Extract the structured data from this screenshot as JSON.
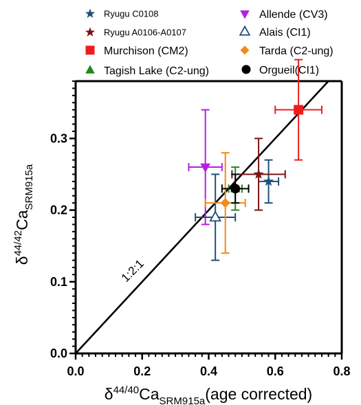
{
  "chart_data": {
    "type": "scatter",
    "xlabel": {
      "main": "δ",
      "sup": "44/40",
      "mid": "Ca",
      "sub": "SRM915a",
      "tail": "(age corrected)"
    },
    "ylabel": {
      "main": "δ",
      "sup": "44/42",
      "mid": "Ca",
      "sub": "SRM915a"
    },
    "xlim": [
      0.0,
      0.8
    ],
    "ylim": [
      0.0,
      0.38
    ],
    "x_ticks": [
      "0.0",
      "0.2",
      "0.4",
      "0.6",
      "0.8"
    ],
    "y_ticks": [
      "0.0",
      "0.1",
      "0.2",
      "0.3"
    ],
    "reference_line": {
      "label": "1:2:1",
      "slope": 0.5
    },
    "series": [
      {
        "name": "Ryugu C0108",
        "marker": "star",
        "color": "#1f4e79",
        "x": 0.58,
        "y": 0.24,
        "xerr": 0.03,
        "yerr": 0.03
      },
      {
        "name": "Ryugu A0106-A0107",
        "marker": "star",
        "color": "#7b1416",
        "x": 0.55,
        "y": 0.25,
        "xerr": 0.08,
        "yerr": 0.05
      },
      {
        "name": "Murchison (CM2)",
        "marker": "square",
        "color": "#ee1c1c",
        "x": 0.67,
        "y": 0.34,
        "xerr": 0.07,
        "yerr": 0.07
      },
      {
        "name": "Tagish Lake (C2-ung)",
        "marker": "triangle-up",
        "color": "#1e8a1e",
        "x": 0.48,
        "y": 0.23,
        "xerr": 0.02,
        "yerr": 0.03
      },
      {
        "name": "Allende (CV3)",
        "marker": "triangle-down",
        "color": "#b31fe0",
        "x": 0.39,
        "y": 0.26,
        "xerr": 0.05,
        "yerr": 0.08
      },
      {
        "name": "Alais (CI1)",
        "marker": "triangle-up-open",
        "color": "#1f4e79",
        "x": 0.42,
        "y": 0.19,
        "xerr": 0.06,
        "yerr": 0.06
      },
      {
        "name": "Tarda (C2-ung)",
        "marker": "diamond",
        "color": "#f08a1a",
        "x": 0.45,
        "y": 0.21,
        "xerr": 0.06,
        "yerr": 0.07
      },
      {
        "name": "Orgueil(CI1)",
        "marker": "circle",
        "color": "#000000",
        "x": 0.48,
        "y": 0.23,
        "xerr": 0.04,
        "yerr": 0.02
      }
    ]
  }
}
